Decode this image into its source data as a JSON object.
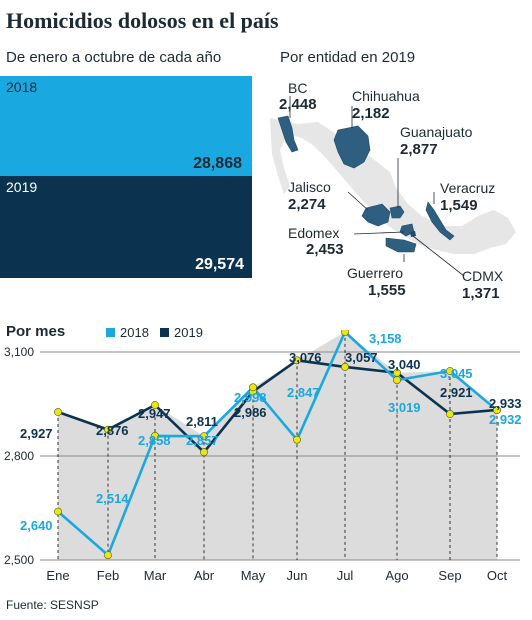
{
  "title": "Homicidios dolosos en el país",
  "annual": {
    "subtitle": "De enero a octubre de cada año",
    "bars": [
      {
        "year": "2018",
        "value": "28,868",
        "color": "#1aa8e0"
      },
      {
        "year": "2019",
        "value": "29,574",
        "color": "#0b3350"
      }
    ]
  },
  "states": {
    "subtitle": "Por entidad en 2019",
    "items": [
      {
        "name": "BC",
        "value": "2,448"
      },
      {
        "name": "Chihuahua",
        "value": "2,182"
      },
      {
        "name": "Guanajuato",
        "value": "2,877"
      },
      {
        "name": "Jalisco",
        "value": "2,274"
      },
      {
        "name": "Veracruz",
        "value": "1,549"
      },
      {
        "name": "Edomex",
        "value": "2,453"
      },
      {
        "name": "Guerrero",
        "value": "1,555"
      },
      {
        "name": "CDMX",
        "value": "1,371"
      }
    ]
  },
  "monthly": {
    "subtitle": "Por mes",
    "legend": [
      {
        "label": "2018",
        "color": "#1aa8e0"
      },
      {
        "label": "2019",
        "color": "#0b3350"
      }
    ]
  },
  "source": "Fuente: SESNSP",
  "chart_data": {
    "type": "line",
    "categories": [
      "Ene",
      "Feb",
      "Mar",
      "Abr",
      "May",
      "Jun",
      "Jul",
      "Ago",
      "Sep",
      "Oct"
    ],
    "series": [
      {
        "name": "2018",
        "color": "#1aa8e0",
        "values": [
          2640,
          2514,
          2858,
          2857,
          2998,
          2847,
          3158,
          3019,
          3045,
          2932
        ],
        "labels": [
          "2,640",
          "2,514",
          "2,858",
          "2,857",
          "2,998",
          "2,847",
          "3,158",
          "3,019",
          "3,045",
          "2,932"
        ]
      },
      {
        "name": "2019",
        "color": "#0b3350",
        "values": [
          2927,
          2876,
          2947,
          2811,
          2986,
          3076,
          3057,
          3040,
          2921,
          2933
        ],
        "labels": [
          "2,927",
          "2,876",
          "2,947",
          "2,811",
          "2,986",
          "3,076",
          "3,057",
          "3,040",
          "2,921",
          "2,933"
        ]
      }
    ],
    "yticks": [
      {
        "value": 2500,
        "label": "2,500"
      },
      {
        "value": 2800,
        "label": "2,800"
      },
      {
        "value": 3100,
        "label": "3,100"
      }
    ],
    "ylim": [
      2500,
      3220
    ],
    "grid": true,
    "legend": "top"
  }
}
